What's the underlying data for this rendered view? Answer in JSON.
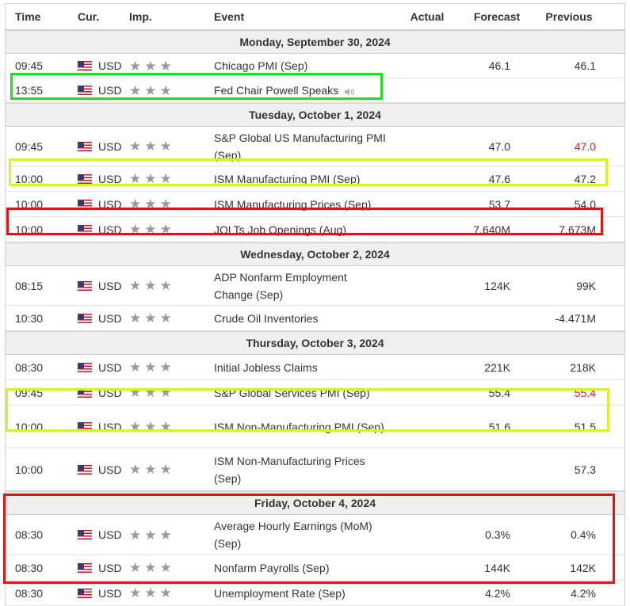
{
  "headers": {
    "time": "Time",
    "cur": "Cur.",
    "imp": "Imp.",
    "event": "Event",
    "actual": "Actual",
    "forecast": "Forecast",
    "previous": "Previous"
  },
  "days": [
    {
      "label": "Monday, September 30, 2024",
      "events": [
        {
          "time": "09:45",
          "cur": "USD",
          "event": "Chicago PMI (Sep)",
          "actual": "",
          "forecast": "46.1",
          "previous": "46.1"
        },
        {
          "time": "13:55",
          "cur": "USD",
          "event": "Fed Chair Powell Speaks",
          "actual": "",
          "forecast": "",
          "previous": "",
          "speaker": true
        }
      ]
    },
    {
      "label": "Tuesday, October 1, 2024",
      "events": [
        {
          "time": "09:45",
          "cur": "USD",
          "event": "S&P Global US Manufacturing PMI (Sep)",
          "actual": "",
          "forecast": "47.0",
          "previous": "47.0",
          "prev_red": true
        },
        {
          "time": "10:00",
          "cur": "USD",
          "event": "ISM Manufacturing PMI (Sep)",
          "actual": "",
          "forecast": "47.6",
          "previous": "47.2"
        },
        {
          "time": "10:00",
          "cur": "USD",
          "event": "ISM Manufacturing Prices (Sep)",
          "actual": "",
          "forecast": "53.7",
          "previous": "54.0"
        },
        {
          "time": "10:00",
          "cur": "USD",
          "event": "JOLTs Job Openings (Aug)",
          "actual": "",
          "forecast": "7.640M",
          "previous": "7.673M"
        }
      ]
    },
    {
      "label": "Wednesday, October 2, 2024",
      "events": [
        {
          "time": "08:15",
          "cur": "USD",
          "event": "ADP Nonfarm Employment Change (Sep)",
          "actual": "",
          "forecast": "124K",
          "previous": "99K"
        },
        {
          "time": "10:30",
          "cur": "USD",
          "event": "Crude Oil Inventories",
          "actual": "",
          "forecast": "",
          "previous": "-4.471M"
        }
      ]
    },
    {
      "label": "Thursday, October 3, 2024",
      "events": [
        {
          "time": "08:30",
          "cur": "USD",
          "event": "Initial Jobless Claims",
          "actual": "",
          "forecast": "221K",
          "previous": "218K"
        },
        {
          "time": "09:45",
          "cur": "USD",
          "event": "S&P Global Services PMI (Sep)",
          "actual": "",
          "forecast": "55.4",
          "previous": "55.4",
          "prev_red": true
        },
        {
          "time": "10:00",
          "cur": "USD",
          "event": "ISM Non-Manufacturing PMI (Sep)",
          "actual": "",
          "forecast": "51.6",
          "previous": "51.5"
        },
        {
          "time": "10:00",
          "cur": "USD",
          "event": "ISM Non-Manufacturing Prices (Sep)",
          "actual": "",
          "forecast": "",
          "previous": "57.3"
        }
      ]
    },
    {
      "label": "Friday, October 4, 2024",
      "events": [
        {
          "time": "08:30",
          "cur": "USD",
          "event": "Average Hourly Earnings (MoM) (Sep)",
          "actual": "",
          "forecast": "0.3%",
          "previous": "0.4%"
        },
        {
          "time": "08:30",
          "cur": "USD",
          "event": "Nonfarm Payrolls (Sep)",
          "actual": "",
          "forecast": "144K",
          "previous": "142K"
        },
        {
          "time": "08:30",
          "cur": "USD",
          "event": "Unemployment Rate (Sep)",
          "actual": "",
          "forecast": "4.2%",
          "previous": "4.2%"
        }
      ]
    }
  ],
  "colors": {
    "highlight_green": "#22dd22",
    "highlight_yellow": "#d4f52a",
    "highlight_red": "#e01515",
    "previous_red": "#e31c1c"
  }
}
